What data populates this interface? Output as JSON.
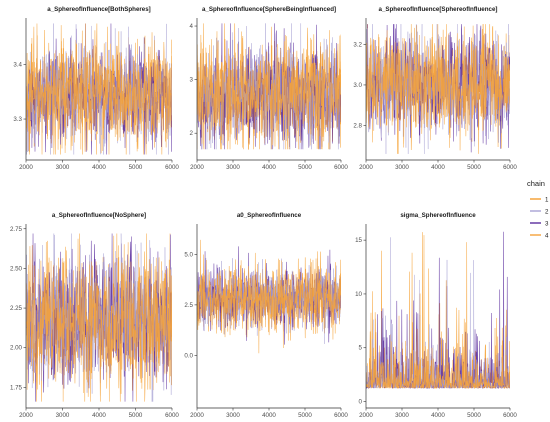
{
  "chart_data": [
    {
      "type": "line",
      "title": "a_SphereofInfluence[BothSpheres]",
      "xlim": [
        2000,
        6000
      ],
      "ylim": [
        3.225,
        3.485
      ],
      "xticks": [
        2000,
        3000,
        4000,
        5000,
        6000
      ],
      "yticks": [
        3.3,
        3.4
      ],
      "ytick_labels": [
        "3.3",
        "3.4"
      ],
      "trace": {
        "center": 3.345,
        "spread": 0.045,
        "spikes": [
          [
            3.235,
            3.475
          ]
        ]
      }
    },
    {
      "type": "line",
      "title": "a_SphereofInfluence[SphereBeingInfluenced]",
      "xlim": [
        2000,
        6000
      ],
      "ylim": [
        1.5,
        4.15
      ],
      "xticks": [
        2000,
        3000,
        4000,
        5000,
        6000
      ],
      "yticks": [
        2,
        3,
        4
      ],
      "ytick_labels": [
        "2",
        "3",
        "4"
      ],
      "trace": {
        "center": 2.72,
        "spread": 0.48,
        "spikes": [
          [
            1.7,
            4.05
          ]
        ]
      }
    },
    {
      "type": "line",
      "title": "a_SphereofInfluence[SphereofInfluence]",
      "xlim": [
        2000,
        6000
      ],
      "ylim": [
        2.63,
        3.33
      ],
      "xticks": [
        2000,
        3000,
        4000,
        5000,
        6000
      ],
      "yticks": [
        2.8,
        3.0,
        3.2
      ],
      "ytick_labels": [
        "2.8",
        "3.0",
        "3.2"
      ],
      "trace": {
        "center": 3.0,
        "spread": 0.12,
        "spikes": [
          [
            2.66,
            3.3
          ]
        ]
      }
    },
    {
      "type": "line",
      "title": "a_SphereofInfluence[NoSphere]",
      "xlim": [
        2000,
        6000
      ],
      "ylim": [
        1.62,
        2.78
      ],
      "xticks": [
        2000,
        3000,
        4000,
        5000,
        6000
      ],
      "yticks": [
        1.75,
        2.0,
        2.25,
        2.5,
        2.75
      ],
      "ytick_labels": [
        "1.75",
        "2.00",
        "2.25",
        "2.50",
        "2.75"
      ],
      "trace": {
        "center": 2.17,
        "spread": 0.2,
        "spikes": [
          [
            1.66,
            2.72
          ]
        ]
      }
    },
    {
      "type": "line",
      "title": "a0_SphereofInfluence",
      "xlim": [
        2000,
        6000
      ],
      "ylim": [
        -2.6,
        6.5
      ],
      "xticks": [
        2000,
        3000,
        4000,
        5000,
        6000
      ],
      "yticks": [
        0.0,
        2.5,
        5.0
      ],
      "ytick_labels": [
        "0.0",
        "2.5",
        "5.0"
      ],
      "trace": {
        "center": 2.8,
        "spread": 0.75,
        "spikes": [
          [
            -2.2,
            6.2
          ]
        ]
      }
    },
    {
      "type": "line",
      "title": "sigma_SphereofInfluence",
      "xlim": [
        2000,
        6000
      ],
      "ylim": [
        -0.6,
        16.5
      ],
      "xticks": [
        2000,
        3000,
        4000,
        5000,
        6000
      ],
      "yticks": [
        0,
        5,
        10,
        15
      ],
      "ytick_labels": [
        "0",
        "5",
        "10",
        "15"
      ],
      "trace": {
        "center": 1.6,
        "spread": 1.2,
        "skew": true,
        "spikes": [
          [
            0.2,
            16.0
          ]
        ]
      }
    }
  ],
  "legend": {
    "title": "chain",
    "placement": "right",
    "items": [
      {
        "label": "1",
        "color": "#F59E2E"
      },
      {
        "label": "2",
        "color": "#A7A2D4"
      },
      {
        "label": "3",
        "color": "#5B2D9E"
      },
      {
        "label": "4",
        "color": "#F5A33A"
      }
    ]
  }
}
